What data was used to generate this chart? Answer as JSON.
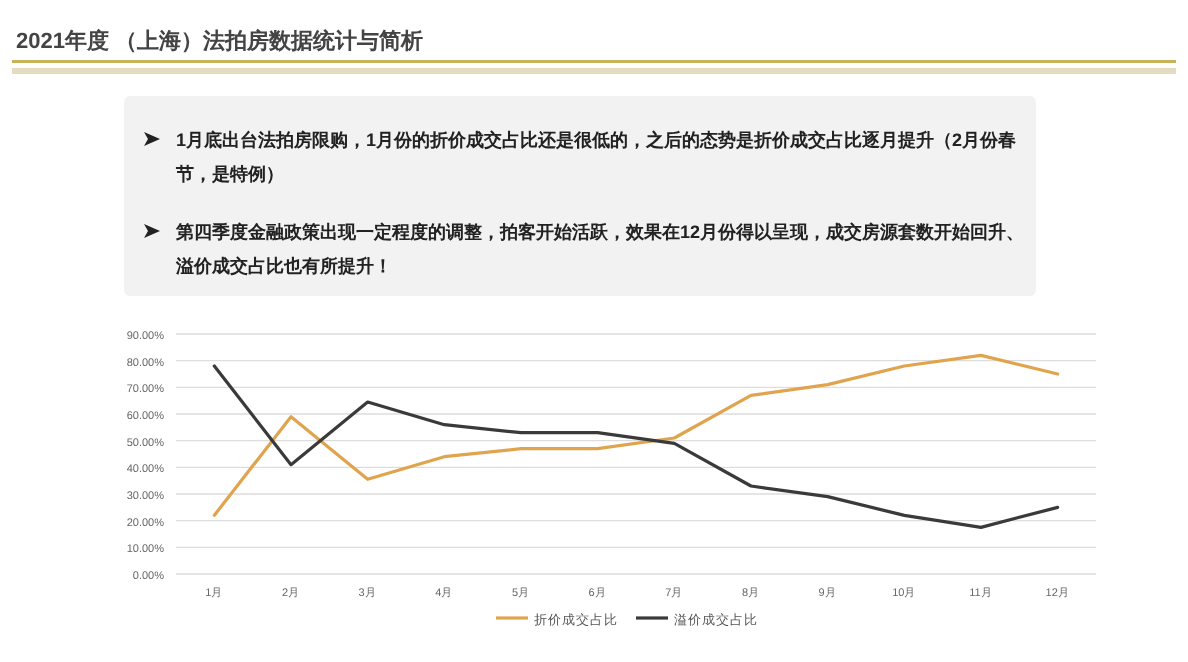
{
  "chart_data": {
    "type": "line",
    "title": "2021年度 （上海）法拍房数据统计与简析",
    "annotations": [
      "1月底出台法拍房限购，1月份的折价成交占比还是很低的，之后的态势是折价成交占比逐月提升（2月份春节，是特例）",
      "第四季度金融政策出现一定程度的调整，拍客开始活跃，效果在12月份得以呈现，成交房源套数开始回升、溢价成交占比也有所提升！"
    ],
    "categories": [
      "1月",
      "2月",
      "3月",
      "4月",
      "5月",
      "6月",
      "7月",
      "8月",
      "9月",
      "10月",
      "11月",
      "12月"
    ],
    "series": [
      {
        "name": "折价成交占比",
        "color": "#e0a44e",
        "values": [
          22,
          59,
          35.5,
          44,
          47,
          47,
          51,
          67,
          71,
          78,
          82,
          75
        ]
      },
      {
        "name": "溢价成交占比",
        "color": "#3a3a3a",
        "values": [
          78,
          41,
          64.5,
          56,
          53,
          53,
          49,
          33,
          29,
          22,
          17.5,
          25
        ]
      }
    ],
    "ylim": [
      0,
      90
    ],
    "yticks": [
      {
        "value": 0,
        "label": "0.00%"
      },
      {
        "value": 10,
        "label": "10.00%"
      },
      {
        "value": 20,
        "label": "20.00%"
      },
      {
        "value": 30,
        "label": "30.00%"
      },
      {
        "value": 40,
        "label": "40.00%"
      },
      {
        "value": 50,
        "label": "50.00%"
      },
      {
        "value": 60,
        "label": "60.00%"
      },
      {
        "value": 70,
        "label": "70.00%"
      },
      {
        "value": 80,
        "label": "80.00%"
      },
      {
        "value": 90,
        "label": "90.00%"
      }
    ],
    "grid": "y",
    "legend": "bottom",
    "marker": "none",
    "line_style": "solid"
  }
}
